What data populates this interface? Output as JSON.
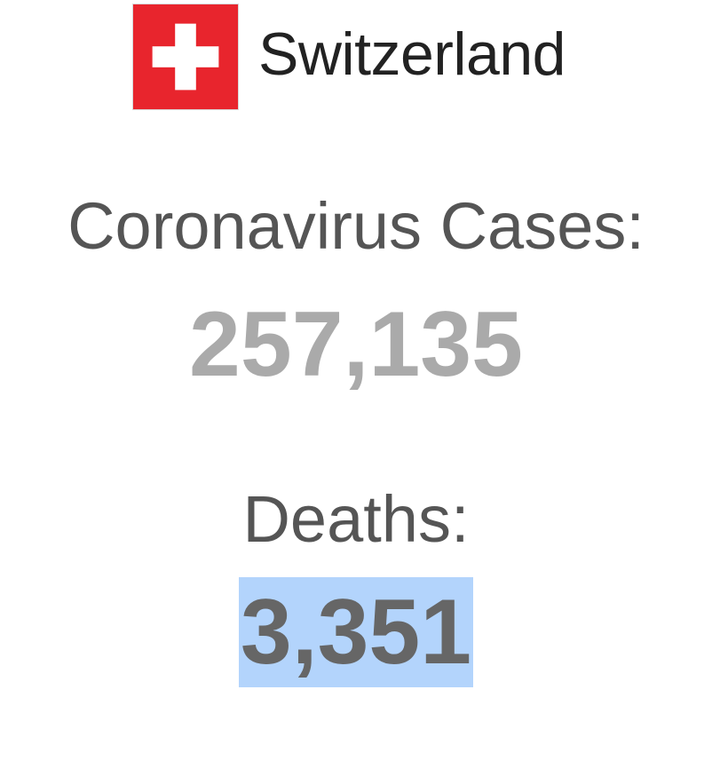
{
  "country": {
    "name": "Switzerland",
    "flag_icon": "swiss-flag-icon",
    "flag_colors": {
      "background": "#e8252d",
      "cross": "#ffffff"
    }
  },
  "stats": {
    "cases_label": "Coronavirus Cases:",
    "cases_value": "257,135",
    "deaths_label": "Deaths:",
    "deaths_value": "3,351"
  },
  "selection": {
    "highlight_color": "#b3d4fc",
    "selected_text": "3,351"
  }
}
